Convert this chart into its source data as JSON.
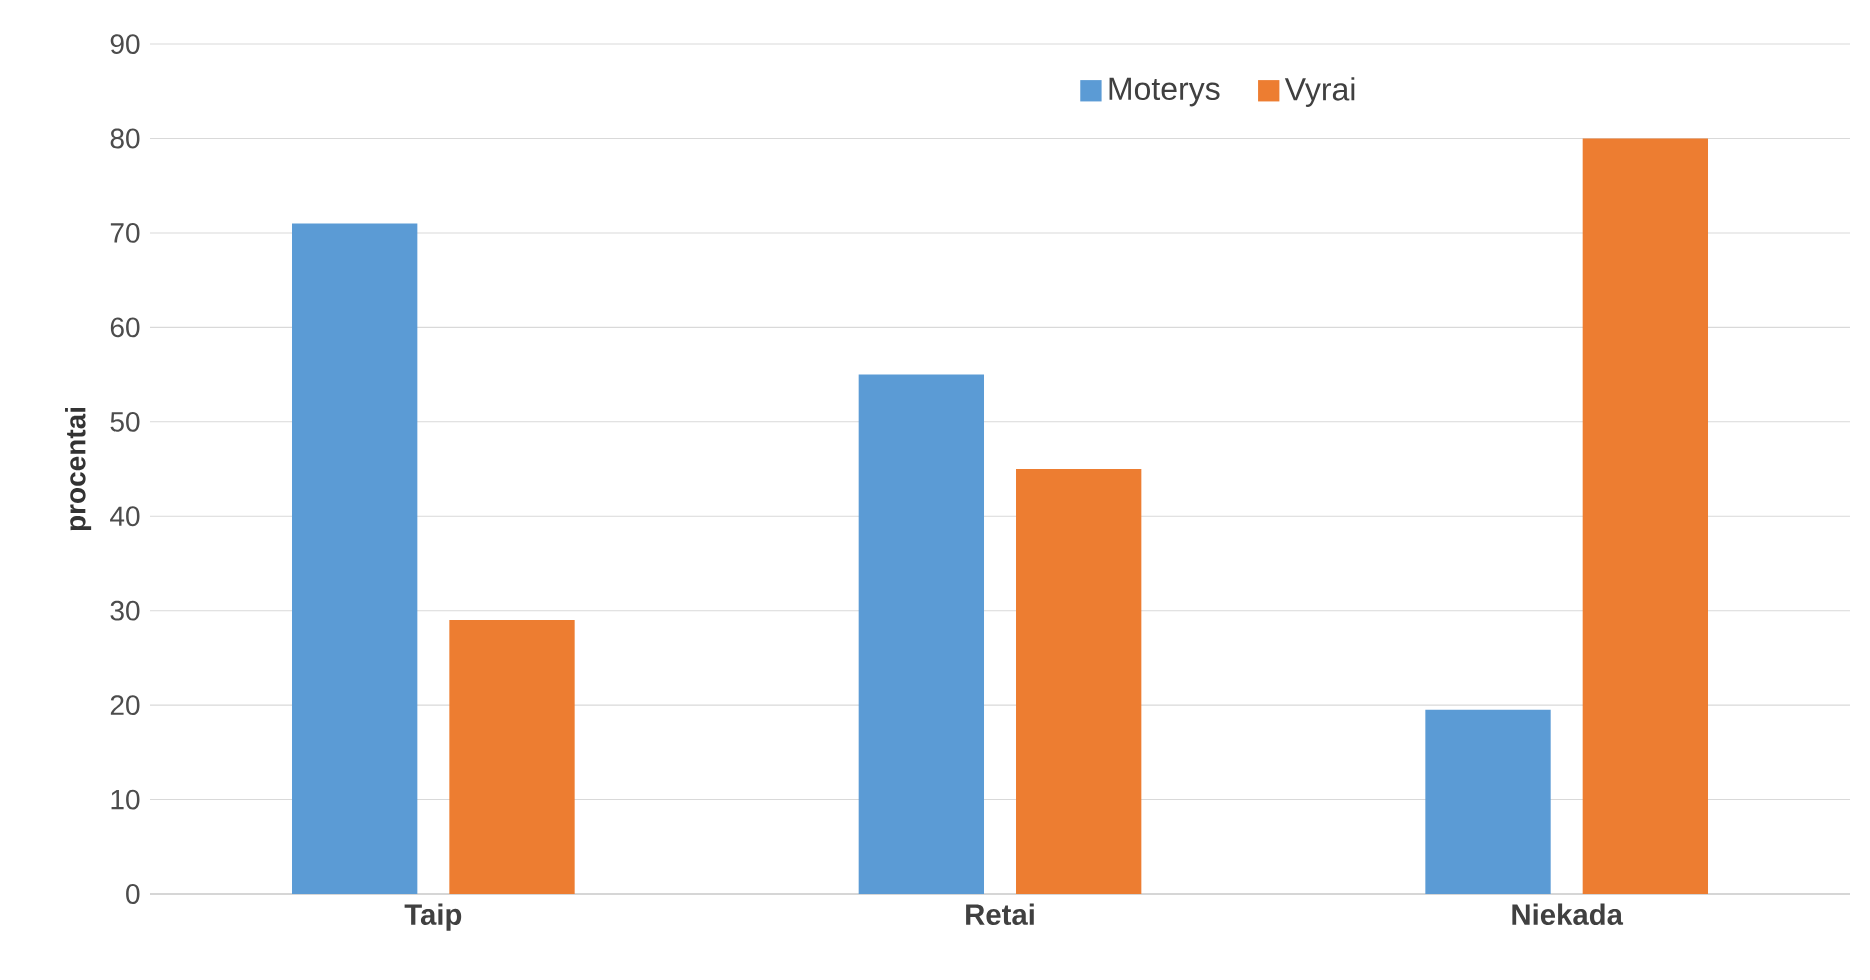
{
  "chart_data": {
    "type": "bar",
    "ylabel": "procentai",
    "categories": [
      "Taip",
      "Retai",
      "Niekada"
    ],
    "series": [
      {
        "name": "Moterys",
        "color": "#5b9bd5",
        "values": [
          71,
          55,
          19.5
        ]
      },
      {
        "name": "Vyrai",
        "color": "#ed7d31",
        "values": [
          29,
          45,
          80
        ]
      }
    ],
    "ylim": [
      0,
      90
    ],
    "yticks": [
      0,
      10,
      20,
      30,
      40,
      50,
      60,
      70,
      80,
      90
    ],
    "grid": "y",
    "legend": "top right"
  }
}
